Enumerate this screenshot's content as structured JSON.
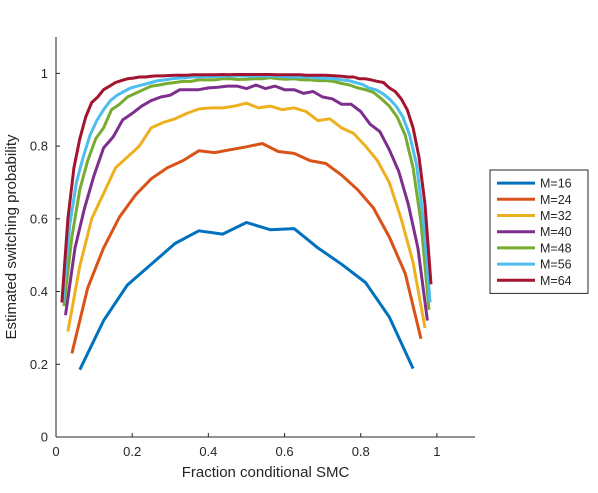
{
  "chart_data": {
    "type": "line",
    "xlabel": "Fraction conditional SMC",
    "ylabel": "Estimated switching probability",
    "xlim": [
      0,
      1.1
    ],
    "ylim": [
      0,
      1.1
    ],
    "xticks": [
      0,
      0.2,
      0.4,
      0.6,
      0.8,
      1
    ],
    "yticks": [
      0,
      0.2,
      0.4,
      0.6,
      0.8,
      1
    ],
    "xtick_labels": [
      "0",
      "0.2",
      "0.4",
      "0.6",
      "0.8",
      "1"
    ],
    "ytick_labels": [
      "0",
      "0.2",
      "0.4",
      "0.6",
      "0.8",
      "1"
    ],
    "grid": false,
    "legend_position": "outside-right",
    "series": [
      {
        "name": "M=16",
        "color": "#0072BD",
        "x": [
          0.0625,
          0.125,
          0.1875,
          0.25,
          0.3125,
          0.375,
          0.4375,
          0.5,
          0.5625,
          0.625,
          0.6875,
          0.75,
          0.8125,
          0.875,
          0.9375
        ],
        "y": [
          0.185,
          0.32,
          0.418,
          0.475,
          0.532,
          0.567,
          0.558,
          0.59,
          0.57,
          0.573,
          0.52,
          0.475,
          0.425,
          0.33,
          0.188
        ]
      },
      {
        "name": "M=24",
        "color": "#D95319",
        "x": [
          0.0417,
          0.0833,
          0.125,
          0.1667,
          0.2083,
          0.25,
          0.2917,
          0.3333,
          0.375,
          0.4167,
          0.4583,
          0.5,
          0.5417,
          0.5833,
          0.625,
          0.6667,
          0.7083,
          0.75,
          0.7917,
          0.8333,
          0.875,
          0.9167,
          0.9583
        ],
        "y": [
          0.23,
          0.41,
          0.52,
          0.605,
          0.665,
          0.71,
          0.74,
          0.76,
          0.787,
          0.782,
          0.79,
          0.798,
          0.807,
          0.785,
          0.78,
          0.76,
          0.752,
          0.72,
          0.68,
          0.63,
          0.55,
          0.45,
          0.27
        ]
      },
      {
        "name": "M=32",
        "color": "#EDB120",
        "x": [
          0.03125,
          0.0625,
          0.09375,
          0.125,
          0.15625,
          0.1875,
          0.21875,
          0.25,
          0.28125,
          0.3125,
          0.34375,
          0.375,
          0.40625,
          0.4375,
          0.46875,
          0.5,
          0.53125,
          0.5625,
          0.59375,
          0.625,
          0.65625,
          0.6875,
          0.71875,
          0.75,
          0.78125,
          0.8125,
          0.84375,
          0.875,
          0.90625,
          0.9375,
          0.96875
        ],
        "y": [
          0.29,
          0.47,
          0.6,
          0.67,
          0.74,
          0.77,
          0.8,
          0.85,
          0.865,
          0.875,
          0.89,
          0.902,
          0.905,
          0.905,
          0.91,
          0.918,
          0.905,
          0.91,
          0.9,
          0.905,
          0.895,
          0.87,
          0.875,
          0.85,
          0.835,
          0.8,
          0.76,
          0.7,
          0.6,
          0.48,
          0.3
        ]
      },
      {
        "name": "M=40",
        "color": "#7E2F8E",
        "x": [
          0.025,
          0.05,
          0.075,
          0.1,
          0.125,
          0.15,
          0.175,
          0.2,
          0.225,
          0.25,
          0.275,
          0.3,
          0.325,
          0.35,
          0.375,
          0.4,
          0.425,
          0.45,
          0.475,
          0.5,
          0.525,
          0.55,
          0.575,
          0.6,
          0.625,
          0.65,
          0.675,
          0.7,
          0.725,
          0.75,
          0.775,
          0.8,
          0.825,
          0.85,
          0.875,
          0.9,
          0.925,
          0.95,
          0.975
        ],
        "y": [
          0.335,
          0.52,
          0.63,
          0.72,
          0.795,
          0.825,
          0.872,
          0.89,
          0.91,
          0.925,
          0.935,
          0.94,
          0.955,
          0.955,
          0.955,
          0.96,
          0.962,
          0.965,
          0.965,
          0.958,
          0.968,
          0.958,
          0.965,
          0.955,
          0.955,
          0.945,
          0.95,
          0.935,
          0.93,
          0.915,
          0.915,
          0.895,
          0.86,
          0.84,
          0.79,
          0.73,
          0.64,
          0.52,
          0.32
        ]
      },
      {
        "name": "M=48",
        "color": "#77AC30",
        "x": [
          0.0208,
          0.0417,
          0.0625,
          0.0833,
          0.1042,
          0.125,
          0.1458,
          0.1667,
          0.1875,
          0.2083,
          0.2292,
          0.25,
          0.2708,
          0.2917,
          0.3125,
          0.3333,
          0.3542,
          0.375,
          0.3958,
          0.4167,
          0.4375,
          0.4583,
          0.4792,
          0.5,
          0.5208,
          0.5417,
          0.5625,
          0.5833,
          0.6042,
          0.625,
          0.6458,
          0.6667,
          0.6875,
          0.7083,
          0.7292,
          0.75,
          0.7708,
          0.7917,
          0.8125,
          0.8333,
          0.8542,
          0.875,
          0.8958,
          0.9167,
          0.9375,
          0.9583,
          0.9792
        ],
        "y": [
          0.36,
          0.55,
          0.68,
          0.76,
          0.82,
          0.85,
          0.9,
          0.915,
          0.935,
          0.945,
          0.955,
          0.965,
          0.968,
          0.972,
          0.975,
          0.978,
          0.978,
          0.982,
          0.982,
          0.982,
          0.985,
          0.985,
          0.983,
          0.984,
          0.985,
          0.985,
          0.988,
          0.985,
          0.984,
          0.985,
          0.982,
          0.982,
          0.98,
          0.98,
          0.978,
          0.972,
          0.968,
          0.96,
          0.955,
          0.948,
          0.93,
          0.91,
          0.88,
          0.83,
          0.74,
          0.59,
          0.35
        ]
      },
      {
        "name": "M=56",
        "color": "#4DBEEE",
        "x": [
          0.0179,
          0.0357,
          0.0536,
          0.0714,
          0.0893,
          0.1071,
          0.125,
          0.1429,
          0.1607,
          0.1786,
          0.1964,
          0.2143,
          0.2321,
          0.25,
          0.2679,
          0.2857,
          0.3036,
          0.3214,
          0.3393,
          0.3571,
          0.375,
          0.3929,
          0.4107,
          0.4286,
          0.4464,
          0.4643,
          0.4821,
          0.5,
          0.5179,
          0.5357,
          0.5536,
          0.5714,
          0.5893,
          0.6071,
          0.625,
          0.6429,
          0.6607,
          0.6786,
          0.6964,
          0.7143,
          0.7321,
          0.75,
          0.7679,
          0.7857,
          0.8036,
          0.8214,
          0.8393,
          0.8571,
          0.875,
          0.8929,
          0.9107,
          0.9286,
          0.9464,
          0.9643,
          0.9821
        ],
        "y": [
          0.37,
          0.58,
          0.7,
          0.77,
          0.83,
          0.87,
          0.9,
          0.925,
          0.94,
          0.95,
          0.96,
          0.965,
          0.97,
          0.975,
          0.98,
          0.982,
          0.985,
          0.987,
          0.988,
          0.99,
          0.99,
          0.991,
          0.991,
          0.992,
          0.992,
          0.993,
          0.993,
          0.993,
          0.992,
          0.993,
          0.992,
          0.993,
          0.991,
          0.991,
          0.99,
          0.99,
          0.99,
          0.988,
          0.987,
          0.986,
          0.985,
          0.982,
          0.98,
          0.975,
          0.97,
          0.96,
          0.955,
          0.945,
          0.93,
          0.91,
          0.88,
          0.83,
          0.75,
          0.6,
          0.37
        ]
      },
      {
        "name": "M=64",
        "color": "#A2142F",
        "x": [
          0.0156,
          0.0313,
          0.0469,
          0.0625,
          0.0781,
          0.0938,
          0.1094,
          0.125,
          0.1406,
          0.1563,
          0.1719,
          0.1875,
          0.2031,
          0.2188,
          0.2344,
          0.25,
          0.2656,
          0.2813,
          0.2969,
          0.3125,
          0.3281,
          0.3438,
          0.3594,
          0.375,
          0.3906,
          0.4063,
          0.4219,
          0.4375,
          0.4531,
          0.4688,
          0.4844,
          0.5,
          0.5156,
          0.5313,
          0.5469,
          0.5625,
          0.5781,
          0.5938,
          0.6094,
          0.625,
          0.6406,
          0.6563,
          0.6719,
          0.6875,
          0.7031,
          0.7188,
          0.7344,
          0.75,
          0.7656,
          0.7813,
          0.7969,
          0.8125,
          0.8281,
          0.8438,
          0.8594,
          0.875,
          0.8906,
          0.9063,
          0.9219,
          0.9375,
          0.9531,
          0.9688,
          0.9844
        ],
        "y": [
          0.37,
          0.6,
          0.74,
          0.82,
          0.88,
          0.92,
          0.935,
          0.955,
          0.965,
          0.975,
          0.98,
          0.985,
          0.987,
          0.99,
          0.99,
          0.992,
          0.993,
          0.993,
          0.994,
          0.995,
          0.995,
          0.995,
          0.996,
          0.996,
          0.996,
          0.996,
          0.996,
          0.997,
          0.996,
          0.997,
          0.997,
          0.997,
          0.997,
          0.997,
          0.997,
          0.997,
          0.996,
          0.996,
          0.996,
          0.996,
          0.996,
          0.995,
          0.995,
          0.995,
          0.995,
          0.994,
          0.993,
          0.992,
          0.99,
          0.99,
          0.985,
          0.985,
          0.982,
          0.978,
          0.975,
          0.96,
          0.95,
          0.93,
          0.9,
          0.85,
          0.77,
          0.64,
          0.42
        ]
      }
    ]
  }
}
